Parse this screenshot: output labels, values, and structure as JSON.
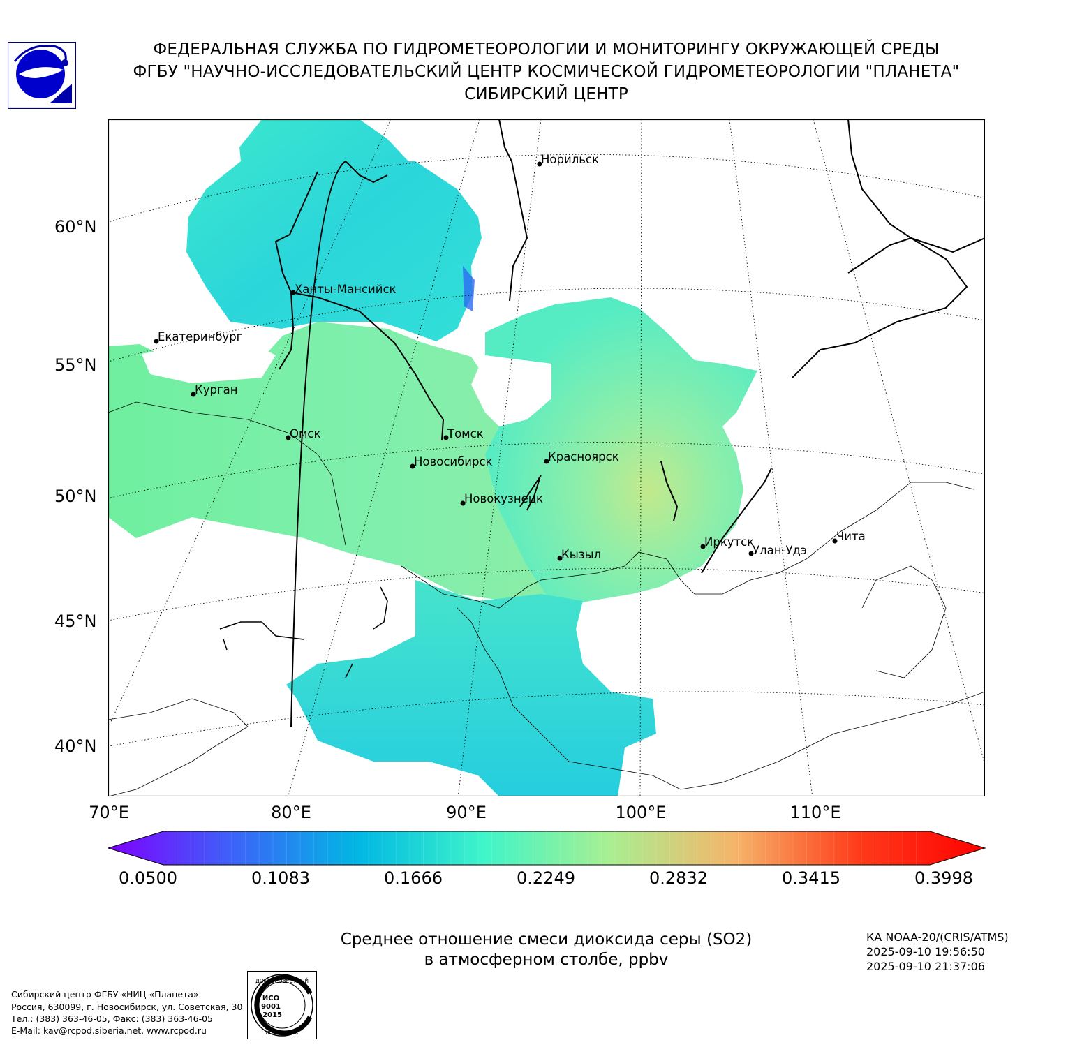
{
  "header": {
    "line1": "ФЕДЕРАЛЬНАЯ СЛУЖБА ПО ГИДРОМЕТЕОРОЛОГИИ И МОНИТОРИНГУ ОКРУЖАЮЩЕЙ СРЕДЫ",
    "line2": "ФГБУ \"НАУЧНО-ИССЛЕДОВАТЕЛЬСКИЙ ЦЕНТР КОСМИЧЕСКОЙ ГИДРОМЕТЕОРОЛОГИИ \"ПЛАНЕТА\"",
    "line3": "СИБИРСКИЙ ЦЕНТР"
  },
  "map": {
    "lat_labels": [
      "60°N",
      "55°N",
      "50°N",
      "45°N",
      "40°N"
    ],
    "lon_labels": [
      "70°E",
      "80°E",
      "90°E",
      "100°E",
      "110°E"
    ],
    "cities": [
      "Норильск",
      "Ханты-Мансийск",
      "Екатеринбург",
      "Курган",
      "Омск",
      "Томск",
      "Новосибирск",
      "Красноярск",
      "Новокузнецк",
      "Иркутск",
      "Улан-Удэ",
      "Чита",
      "Кызыл"
    ]
  },
  "colorbar": {
    "tick_labels": [
      "0.0500",
      "0.1083",
      "0.1666",
      "0.2249",
      "0.2832",
      "0.3415",
      "0.3998"
    ],
    "colors": [
      "#7f00ff",
      "#3c63f9",
      "#00b8e3",
      "#3ff5c9",
      "#a8ef91",
      "#f5b56a",
      "#ff3a1a",
      "#ff0000"
    ]
  },
  "caption": {
    "line1": "Среднее отношение смеси диоксида серы (SO2)",
    "line2": "в атмосферном столбе, ppbv"
  },
  "satellite": {
    "instrument": "КА NOAA-20/(CRIS/ATMS)",
    "time_start": "2025-09-10 19:56:50",
    "time_end": "2025-09-10 21:37:06"
  },
  "organization": {
    "name": "Сибирский центр ФГБУ «НИЦ «Планета»",
    "address": "Россия, 630099, г. Новосибирск, ул. Советская, 30",
    "phone": "Тел.: (383) 363-46-05, Факс: (383) 363-46-05",
    "email": "E-Mail: kav@rcpod.siberia.net, www.rcpod.ru"
  },
  "stamp": {
    "text_top": "ДОБРОСОВЕСТНЫЙ",
    "text_iso": "ИСО",
    "text_num": "9001",
    "text_year": "-2015",
    "text_bottom": "ПОСТАВЩИК"
  }
}
